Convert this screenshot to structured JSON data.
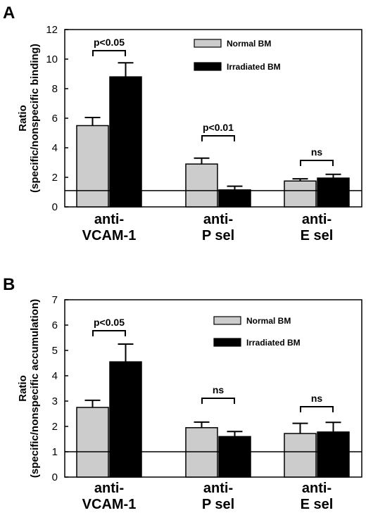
{
  "colors": {
    "normal": "#cccccc",
    "irradiated": "#000000",
    "ink": "#000000"
  },
  "chart_data": [
    {
      "panel": "A",
      "type": "bar",
      "ylabel": "Ratio\n(specific/nonspecific binding)",
      "ylim": [
        0,
        12
      ],
      "yticks": [
        0,
        2,
        4,
        6,
        8,
        10,
        12
      ],
      "reference_line": 1.1,
      "categories": [
        "anti-\nVCAM-1",
        "anti-\nP sel",
        "anti-\nE sel"
      ],
      "series": [
        {
          "name": "Normal BM",
          "values": [
            5.5,
            2.9,
            1.75
          ],
          "errors": [
            0.55,
            0.4,
            0.15
          ]
        },
        {
          "name": "Irradiated BM",
          "values": [
            8.8,
            1.15,
            1.95
          ],
          "errors": [
            0.95,
            0.25,
            0.25
          ]
        }
      ],
      "significance": [
        "p<0.05",
        "p<0.01",
        "ns"
      ],
      "legend": "top-right"
    },
    {
      "panel": "B",
      "type": "bar",
      "ylabel": "Ratio\n(specific/nonspecific accumulation)",
      "ylim": [
        0,
        7
      ],
      "yticks": [
        0,
        1,
        2,
        3,
        4,
        5,
        6,
        7
      ],
      "reference_line": 1.0,
      "categories": [
        "anti-\nVCAM-1",
        "anti-\nP sel",
        "anti-\nE sel"
      ],
      "series": [
        {
          "name": "Normal BM",
          "values": [
            2.75,
            1.95,
            1.72
          ],
          "errors": [
            0.28,
            0.22,
            0.4
          ]
        },
        {
          "name": "Irradiated BM",
          "values": [
            4.55,
            1.6,
            1.78
          ],
          "errors": [
            0.7,
            0.2,
            0.38
          ]
        }
      ],
      "significance": [
        "p<0.05",
        "ns",
        "ns"
      ],
      "legend": "top-right"
    }
  ]
}
